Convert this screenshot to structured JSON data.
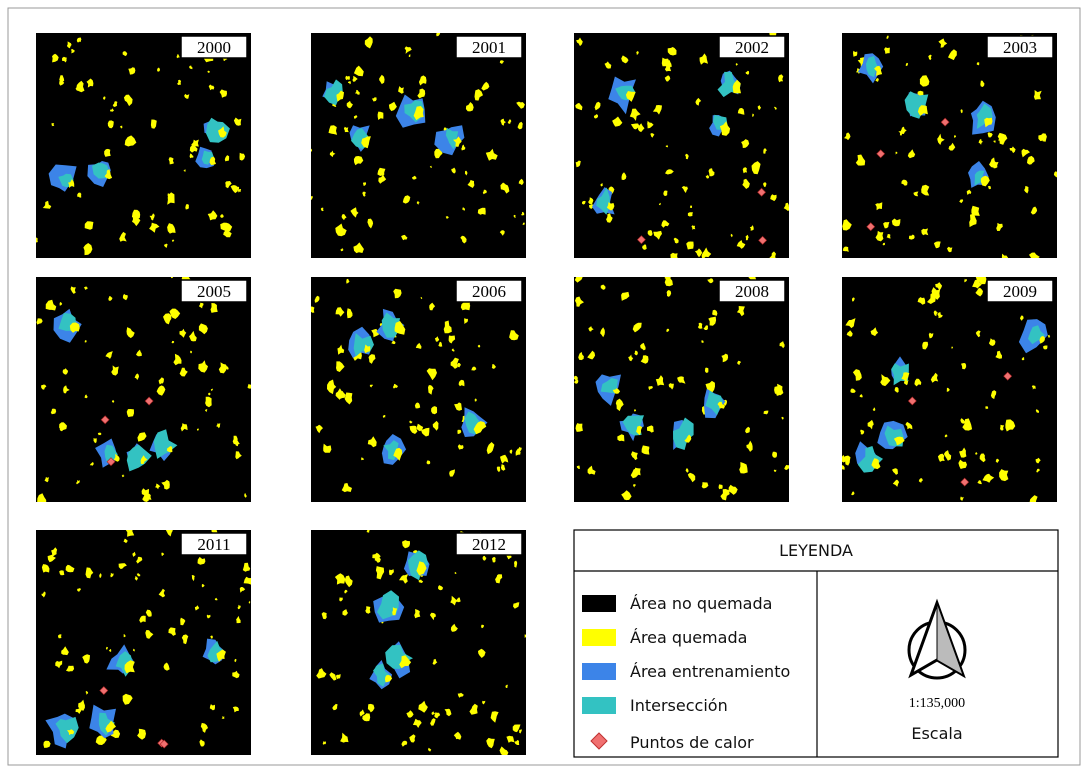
{
  "panels": [
    {
      "year": "2000"
    },
    {
      "year": "2001"
    },
    {
      "year": "2002"
    },
    {
      "year": "2003"
    },
    {
      "year": "2005"
    },
    {
      "year": "2006"
    },
    {
      "year": "2008"
    },
    {
      "year": "2009"
    },
    {
      "year": "2011"
    },
    {
      "year": "2012"
    }
  ],
  "legend": {
    "title": "LEYENDA",
    "items": [
      "Área no quemada",
      "Área quemada",
      "Área entrenamiento",
      "Intersección",
      "Puntos de calor"
    ],
    "scale": "1:135,000",
    "scale_label": "Escala"
  }
}
